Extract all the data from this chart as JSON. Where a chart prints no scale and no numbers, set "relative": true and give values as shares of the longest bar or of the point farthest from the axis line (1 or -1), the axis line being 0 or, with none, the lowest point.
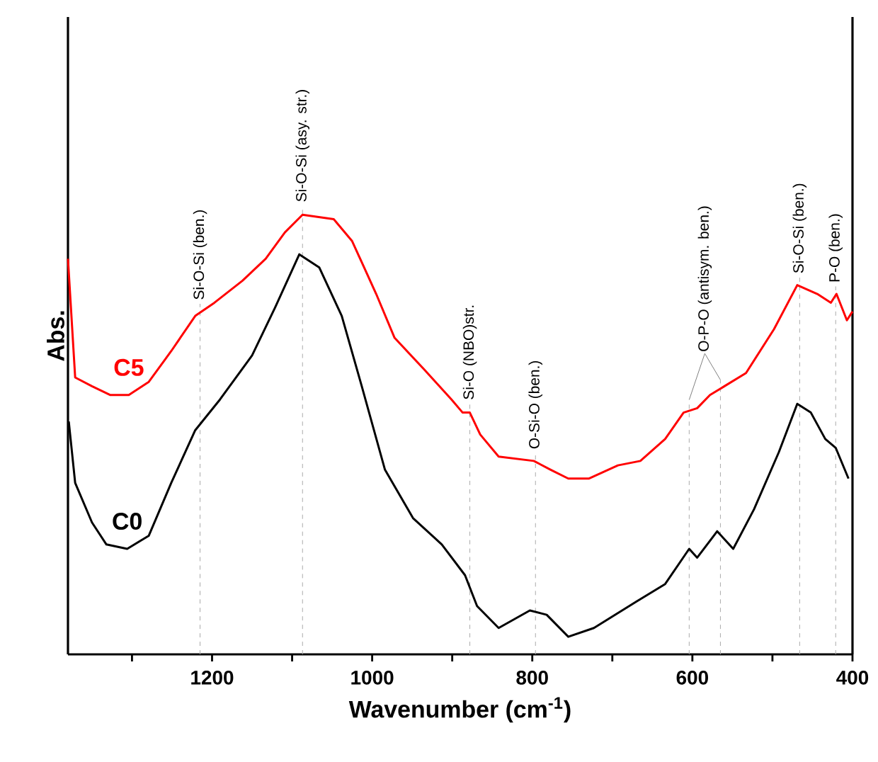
{
  "chart_data": {
    "type": "line",
    "xlabel": "Wavenumber (cm$^{-1}$)",
    "ylabel": "Abs.",
    "relative": true,
    "xlim": [
      1380,
      400
    ],
    "xticks": [
      {
        "value": 1300,
        "label": null
      },
      1200,
      {
        "value": 1100,
        "label": null
      },
      1000,
      {
        "value": 900,
        "label": null
      },
      800,
      {
        "value": 700,
        "label": null
      },
      600,
      {
        "value": 500,
        "label": null
      },
      400
    ],
    "tick_labels": "x",
    "grid": false,
    "marker": "none",
    "line_style": "solid",
    "series": [
      {
        "name": "C5",
        "color": "#ff0000",
        "x": [
          1380,
          1371,
          1350,
          1327,
          1304,
          1279,
          1251,
          1221,
          1197,
          1162,
          1133,
          1109,
          1087,
          1048,
          1025,
          995,
          972,
          936,
          901,
          887,
          878,
          865,
          842,
          798,
          777,
          755,
          729,
          693,
          665,
          634,
          611,
          594,
          578,
          560,
          533,
          498,
          469,
          444,
          427,
          420,
          407,
          400
        ],
        "values": [
          0.9,
          0.63,
          0.61,
          0.59,
          0.59,
          0.62,
          0.69,
          0.77,
          0.8,
          0.85,
          0.9,
          0.96,
          1.0,
          0.99,
          0.94,
          0.82,
          0.72,
          0.65,
          0.58,
          0.55,
          0.55,
          0.5,
          0.45,
          0.44,
          0.42,
          0.4,
          0.4,
          0.43,
          0.44,
          0.49,
          0.55,
          0.56,
          0.59,
          0.61,
          0.64,
          0.74,
          0.84,
          0.82,
          0.8,
          0.82,
          0.76,
          0.78
        ]
      },
      {
        "name": "C0",
        "color": "#000000",
        "x": [
          1379,
          1371,
          1350,
          1332,
          1306,
          1279,
          1251,
          1221,
          1190,
          1150,
          1121,
          1091,
          1066,
          1038,
          1013,
          984,
          949,
          913,
          884,
          869,
          842,
          803,
          782,
          755,
          723,
          670,
          634,
          604,
          594,
          569,
          549,
          523,
          492,
          469,
          452,
          434,
          421,
          405
        ],
        "values": [
          0.53,
          0.39,
          0.3,
          0.25,
          0.24,
          0.27,
          0.39,
          0.51,
          0.58,
          0.68,
          0.79,
          0.91,
          0.88,
          0.77,
          0.61,
          0.42,
          0.31,
          0.25,
          0.18,
          0.11,
          0.06,
          0.1,
          0.09,
          0.04,
          0.06,
          0.12,
          0.16,
          0.24,
          0.22,
          0.28,
          0.24,
          0.33,
          0.46,
          0.57,
          0.55,
          0.49,
          0.47,
          0.4
        ]
      }
    ],
    "ref_lines": [
      {
        "axis": "x",
        "value": 1215,
        "label": "Si-O-Si (ben.)",
        "color": "#aaaaaa",
        "line_style": "dashed"
      },
      {
        "axis": "x",
        "value": 1087,
        "label": "Si-O-Si (asy. str.)",
        "color": "#aaaaaa",
        "line_style": "dashed"
      },
      {
        "axis": "x",
        "value": 878,
        "label": "Si-O (NBO)str.",
        "color": "#aaaaaa",
        "line_style": "dashed"
      },
      {
        "axis": "x",
        "value": 796,
        "label": "O-Si-O (ben.)",
        "color": "#aaaaaa",
        "line_style": "dashed"
      },
      {
        "axis": "x",
        "value": 604,
        "label": "O-P-O (antisym. ben.)",
        "color": "#aaaaaa",
        "line_style": "dashed"
      },
      {
        "axis": "x",
        "value": 565,
        "label": null,
        "color": "#aaaaaa",
        "line_style": "dashed"
      },
      {
        "axis": "x",
        "value": 466,
        "label": "Si-O-Si (ben.)",
        "color": "#aaaaaa",
        "line_style": "dashed"
      },
      {
        "axis": "x",
        "value": 421,
        "label": "P-O (ben.)",
        "color": "#aaaaaa",
        "line_style": "dashed"
      }
    ]
  }
}
